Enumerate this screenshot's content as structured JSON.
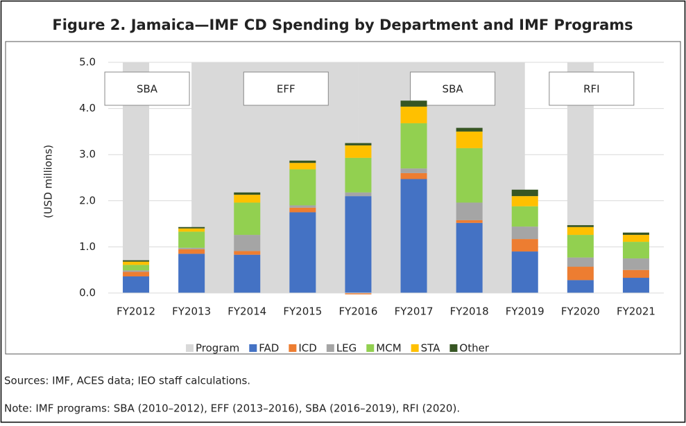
{
  "chart_data": {
    "type": "stacked_bar",
    "title": "Figure 2. Jamaica—IMF CD Spending by Department and IMF Programs",
    "y_label": "(USD millions)",
    "categories": [
      "FY2012",
      "FY2013",
      "FY2014",
      "FY2015",
      "FY2016",
      "FY2017",
      "FY2018",
      "FY2019",
      "FY2020",
      "FY2021"
    ],
    "series": [
      {
        "name": "FAD",
        "color": "#4472c4",
        "values": [
          0.36,
          0.85,
          0.83,
          1.75,
          2.1,
          2.47,
          1.52,
          0.9,
          0.28,
          0.33
        ]
      },
      {
        "name": "ICD",
        "color": "#ed7d31",
        "values": [
          0.1,
          0.1,
          0.08,
          0.1,
          -0.03,
          0.13,
          0.06,
          0.27,
          0.29,
          0.17
        ]
      },
      {
        "name": "LEG",
        "color": "#a5a5a5",
        "values": [
          0.03,
          0.03,
          0.35,
          0.05,
          0.08,
          0.1,
          0.38,
          0.27,
          0.2,
          0.25
        ]
      },
      {
        "name": "MCM",
        "color": "#92d050",
        "values": [
          0.12,
          0.35,
          0.7,
          0.78,
          0.75,
          0.98,
          1.18,
          0.44,
          0.49,
          0.36
        ]
      },
      {
        "name": "STA",
        "color": "#ffc000",
        "values": [
          0.07,
          0.07,
          0.17,
          0.14,
          0.27,
          0.36,
          0.36,
          0.22,
          0.17,
          0.15
        ]
      },
      {
        "name": "Other",
        "color": "#375623",
        "values": [
          0.03,
          0.03,
          0.05,
          0.05,
          0.05,
          0.13,
          0.08,
          0.14,
          0.04,
          0.05
        ]
      }
    ],
    "program_legend": {
      "name": "Program",
      "color": "#d9d9d9"
    },
    "programs": [
      {
        "label": "SBA",
        "start": "FY2012",
        "end": "FY2012"
      },
      {
        "label": "EFF",
        "start": "FY2013",
        "end": "FY2016"
      },
      {
        "label": "SBA",
        "start": "FY2016",
        "end": "FY2019"
      },
      {
        "label": "RFI",
        "start": "FY2020",
        "end": "FY2020"
      }
    ],
    "ylim": [
      0,
      5
    ],
    "yticks": [
      {
        "value": 0,
        "label": "0.0"
      },
      {
        "value": 1,
        "label": "1.0"
      },
      {
        "value": 2,
        "label": "2.0"
      },
      {
        "value": 3,
        "label": "3.0"
      },
      {
        "value": 4,
        "label": "4.0"
      },
      {
        "value": 5,
        "label": "5.0"
      }
    ],
    "grid": true,
    "legend": "bottom",
    "sources": "Sources: IMF, ACES data; IEO staff calculations.",
    "note": "Note: IMF programs: SBA (2010–2012),  EFF (2013–2016),  SBA (2016–2019),  RFI (2020)."
  }
}
